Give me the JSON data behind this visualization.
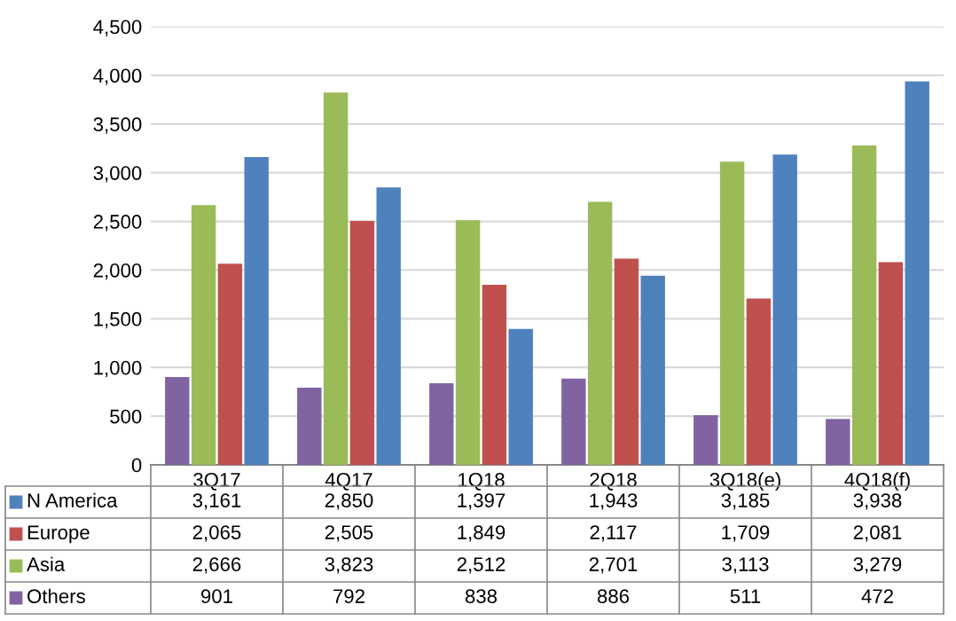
{
  "chart_data": {
    "type": "bar",
    "categories": [
      "3Q17",
      "4Q17",
      "1Q18",
      "2Q18",
      "3Q18(e)",
      "4Q18(f)"
    ],
    "series": [
      {
        "name": "N America",
        "color": "#4f81bd",
        "values": [
          3161,
          2850,
          1397,
          1943,
          3185,
          3938
        ],
        "value_labels": [
          "3,161",
          "2,850",
          "1,397",
          "1,943",
          "3,185",
          "3,938"
        ]
      },
      {
        "name": "Europe",
        "color": "#c0504d",
        "values": [
          2065,
          2505,
          1849,
          2117,
          1709,
          2081
        ],
        "value_labels": [
          "2,065",
          "2,505",
          "1,849",
          "2,117",
          "1,709",
          "2,081"
        ]
      },
      {
        "name": "Asia",
        "color": "#9bbb59",
        "values": [
          2666,
          3823,
          2512,
          2701,
          3113,
          3279
        ],
        "value_labels": [
          "2,666",
          "3,823",
          "2,512",
          "2,701",
          "3,113",
          "3,279"
        ]
      },
      {
        "name": "Others",
        "color": "#8064a2",
        "values": [
          901,
          792,
          838,
          886,
          511,
          472
        ],
        "value_labels": [
          "901",
          "792",
          "838",
          "886",
          "511",
          "472"
        ]
      }
    ],
    "ylim": [
      0,
      4500
    ],
    "yticks": [
      {
        "value": 0,
        "label": "0"
      },
      {
        "value": 500,
        "label": "500"
      },
      {
        "value": 1000,
        "label": "1,000"
      },
      {
        "value": 1500,
        "label": "1,500"
      },
      {
        "value": 2000,
        "label": "2,000"
      },
      {
        "value": 2500,
        "label": "2,500"
      },
      {
        "value": 3000,
        "label": "3,000"
      },
      {
        "value": 3500,
        "label": "3,500"
      },
      {
        "value": 4000,
        "label": "4,000"
      },
      {
        "value": 4500,
        "label": "4,500"
      }
    ],
    "grid": "y",
    "legend": "bottom"
  }
}
